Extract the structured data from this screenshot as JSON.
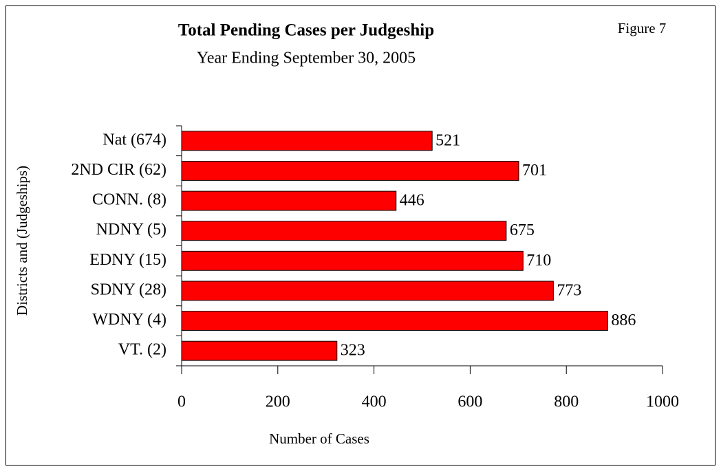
{
  "chart_data": {
    "type": "bar",
    "orientation": "horizontal",
    "title": "Total Pending Cases per Judgeship",
    "subtitle": "Year Ending September 30, 2005",
    "annotation": "Figure 7",
    "xlabel": "Number of Cases",
    "ylabel": "Districts and (Judgeships)",
    "categories": [
      "Nat (674)",
      "2ND CIR (62)",
      "CONN. (8)",
      "NDNY (5)",
      "EDNY (15)",
      "SDNY (28)",
      "WDNY (4)",
      "VT. (2)"
    ],
    "values": [
      521,
      701,
      446,
      675,
      710,
      773,
      886,
      323
    ],
    "color": "#ff0000",
    "xlim": [
      0,
      1000
    ],
    "xticks": [
      0,
      200,
      400,
      600,
      800,
      1000
    ],
    "grid": false
  }
}
